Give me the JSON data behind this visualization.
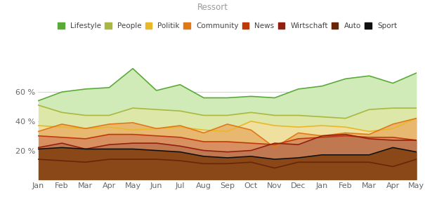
{
  "title": "Ressort",
  "x_labels": [
    "Jan",
    "Feb",
    "Mar",
    "Apr",
    "May",
    "Jun",
    "Jul",
    "Aug",
    "Sep",
    "Oct",
    "Nov",
    "Dec",
    "Jan",
    "Feb",
    "Mar",
    "Apr",
    "May"
  ],
  "series": {
    "Lifestyle": [
      54,
      60,
      62,
      63,
      76,
      61,
      65,
      56,
      56,
      57,
      56,
      62,
      64,
      69,
      71,
      66,
      73
    ],
    "People": [
      51,
      46,
      44,
      44,
      49,
      48,
      47,
      44,
      44,
      46,
      44,
      44,
      43,
      42,
      48,
      49,
      49
    ],
    "Politik": [
      37,
      36,
      35,
      36,
      34,
      35,
      36,
      34,
      33,
      40,
      37,
      36,
      37,
      36,
      33,
      35,
      42
    ],
    "Community": [
      33,
      38,
      35,
      38,
      39,
      35,
      37,
      32,
      38,
      34,
      22,
      32,
      30,
      32,
      31,
      38,
      42
    ],
    "News": [
      30,
      29,
      28,
      31,
      31,
      30,
      29,
      26,
      26,
      25,
      24,
      28,
      29,
      30,
      29,
      29,
      27
    ],
    "Wirtschaft": [
      22,
      25,
      21,
      24,
      25,
      25,
      23,
      20,
      19,
      20,
      25,
      24,
      30,
      31,
      28,
      27,
      27
    ],
    "Auto": [
      14,
      13,
      12,
      14,
      14,
      14,
      13,
      11,
      11,
      12,
      8,
      12,
      12,
      12,
      12,
      9,
      14
    ],
    "Sport": [
      21,
      22,
      21,
      21,
      21,
      20,
      19,
      16,
      15,
      16,
      14,
      15,
      17,
      17,
      17,
      22,
      19
    ]
  },
  "line_colors": {
    "Lifestyle": "#5aaa38",
    "People": "#a8b840",
    "Politik": "#e8b828",
    "Community": "#e07818",
    "News": "#c03808",
    "Wirtschaft": "#922010",
    "Auto": "#6a2408",
    "Sport": "#101010"
  },
  "fill_colors": {
    "Lifestyle": "#d0eab8",
    "People": "#dde8a8",
    "Politik": "#f0e0a0",
    "Community": "#e8b870",
    "News": "#d89060",
    "Wirtschaft": "#c07850",
    "Auto": "#a86030",
    "Sport": "#8a4818"
  },
  "ylim": [
    0,
    80
  ],
  "yticks": [
    20,
    40,
    60
  ],
  "ytick_labels": [
    "20 %",
    "40 %",
    "60 %"
  ],
  "background": "#ffffff",
  "grid_color": "#cccccc",
  "legend_entries": [
    "Lifestyle",
    "People",
    "Politik",
    "Community",
    "News",
    "Wirtschaft",
    "Auto",
    "Sport"
  ]
}
